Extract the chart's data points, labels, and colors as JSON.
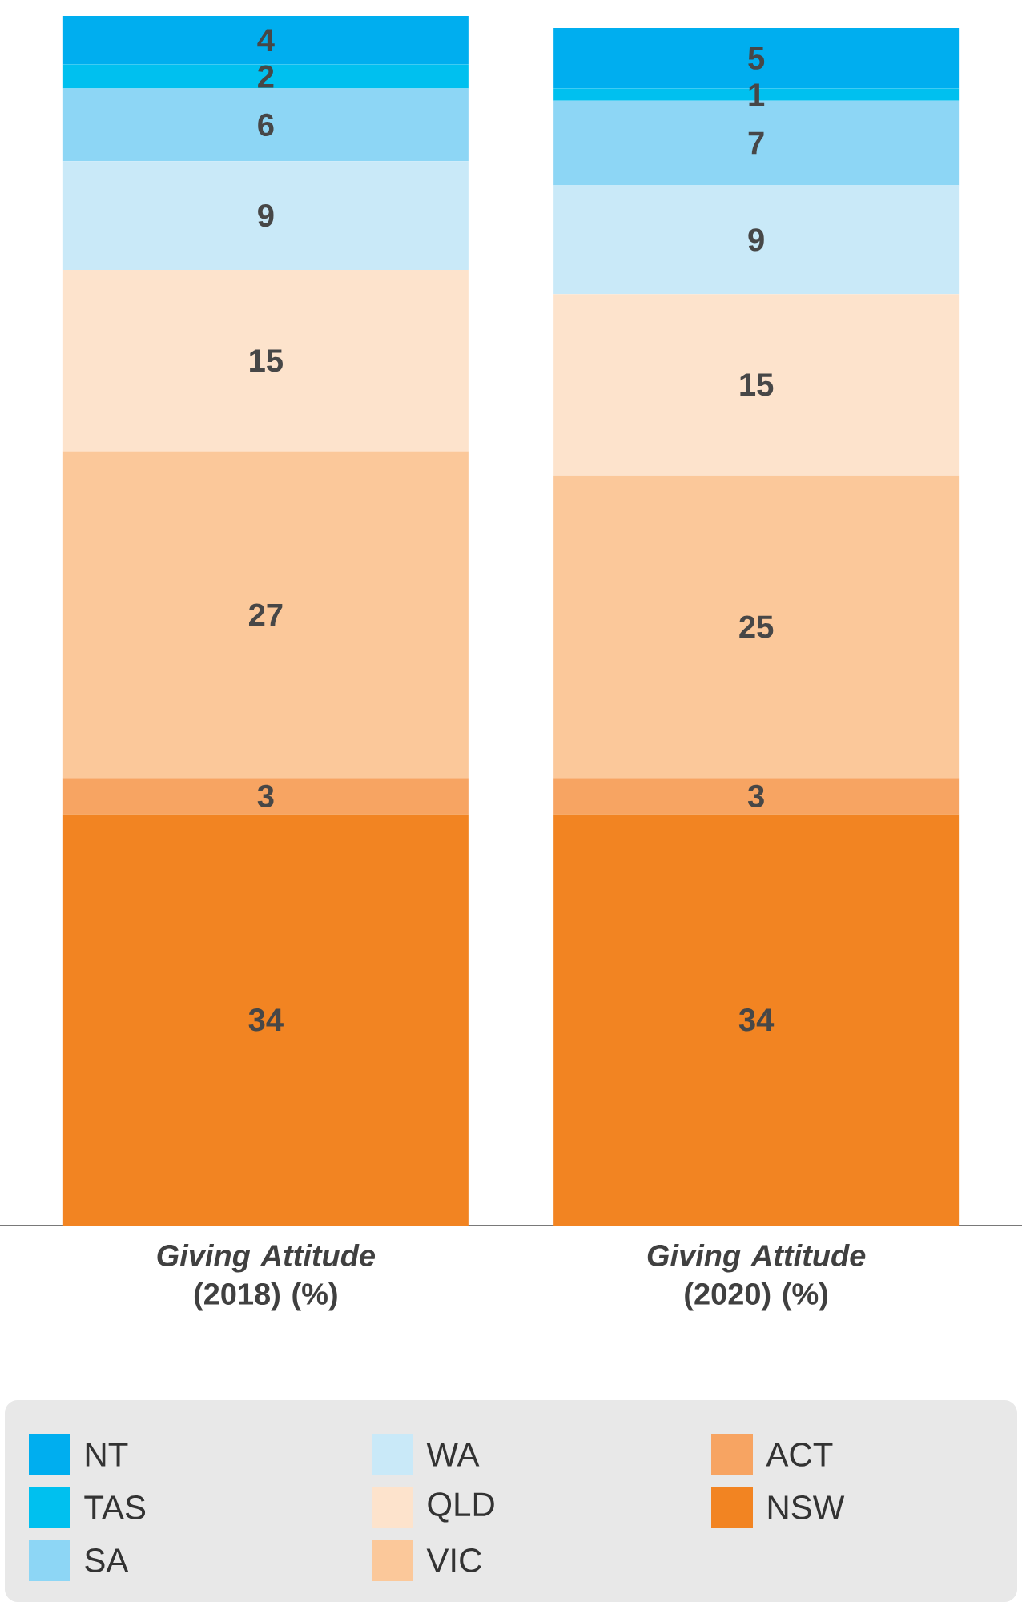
{
  "chart_data": {
    "type": "bar",
    "stacked": true,
    "data_labels": true,
    "legend": "bottom",
    "categories": [
      "*Giving Attitude* (2018) (%)",
      "*Giving Attitude* (2020) (%)"
    ],
    "series": [
      {
        "name": "NSW",
        "color": "#f28422",
        "values": [
          34,
          34
        ]
      },
      {
        "name": "ACT",
        "color": "#f7a462",
        "values": [
          3,
          3
        ]
      },
      {
        "name": "VIC",
        "color": "#fbc89a",
        "values": [
          27,
          25
        ]
      },
      {
        "name": "QLD",
        "color": "#fde3cc",
        "values": [
          15,
          15
        ]
      },
      {
        "name": "WA",
        "color": "#c9e9f8",
        "values": [
          9,
          9
        ]
      },
      {
        "name": "SA",
        "color": "#8dd6f5",
        "values": [
          6,
          7
        ]
      },
      {
        "name": "TAS",
        "color": "#00c0ef",
        "values": [
          2,
          1
        ]
      },
      {
        "name": "NT",
        "color": "#00aeef",
        "values": [
          4,
          5
        ]
      }
    ]
  }
}
